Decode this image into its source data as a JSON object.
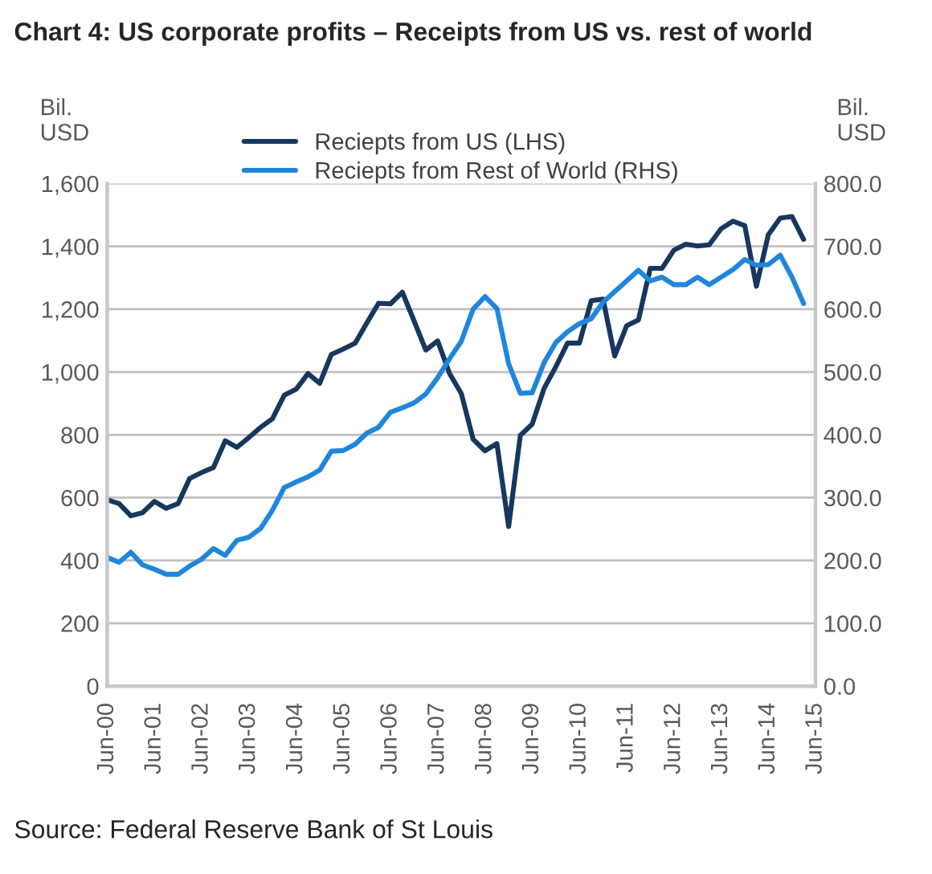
{
  "chart_data": {
    "type": "line",
    "title": "Chart 4: US corporate profits – Receipts from US vs. rest of world",
    "ylabel": "Bil.\nUSD",
    "y2label": "Bil.\nUSD",
    "annotations": [
      "Source: Federal Reserve Bank of St Louis"
    ],
    "x": [
      "2000-06",
      "2000-09",
      "2000-12",
      "2001-03",
      "2001-06",
      "2001-09",
      "2001-12",
      "2002-03",
      "2002-06",
      "2002-09",
      "2002-12",
      "2003-03",
      "2003-06",
      "2003-09",
      "2003-12",
      "2004-03",
      "2004-06",
      "2004-09",
      "2004-12",
      "2005-03",
      "2005-06",
      "2005-09",
      "2005-12",
      "2006-03",
      "2006-06",
      "2006-09",
      "2006-12",
      "2007-03",
      "2007-06",
      "2007-09",
      "2007-12",
      "2008-03",
      "2008-06",
      "2008-09",
      "2008-12",
      "2009-03",
      "2009-06",
      "2009-09",
      "2009-12",
      "2010-03",
      "2010-06",
      "2010-09",
      "2010-12",
      "2011-03",
      "2011-06",
      "2011-09",
      "2011-12",
      "2012-03",
      "2012-06",
      "2012-09",
      "2012-12",
      "2013-03",
      "2013-06",
      "2013-09",
      "2013-12",
      "2014-03",
      "2014-06",
      "2014-09",
      "2014-12",
      "2015-03"
    ],
    "series": [
      {
        "name": "Reciepts from US (LHS)",
        "color": "#17375e",
        "values": [
          593,
          581,
          542,
          552,
          588,
          566,
          581,
          661,
          680,
          696,
          781,
          760,
          791,
          824,
          851,
          926,
          945,
          995,
          964,
          1056,
          1073,
          1092,
          1157,
          1219,
          1217,
          1254,
          1162,
          1070,
          1099,
          995,
          931,
          786,
          749,
          772,
          508,
          798,
          834,
          948,
          1017,
          1092,
          1092,
          1227,
          1232,
          1051,
          1147,
          1166,
          1330,
          1330,
          1388,
          1407,
          1401,
          1405,
          1456,
          1480,
          1466,
          1273,
          1437,
          1490,
          1495,
          1422
        ]
      },
      {
        "name": "Reciepts from Rest of World (RHS)",
        "color": "#1f86dc",
        "axis": "y2",
        "values": [
          205,
          197,
          213,
          193,
          186,
          178,
          178,
          191,
          202,
          219,
          208,
          232,
          237,
          251,
          280,
          316,
          325,
          333,
          344,
          374,
          375,
          385,
          403,
          412,
          436,
          443,
          451,
          465,
          491,
          521,
          549,
          600,
          620,
          601,
          513,
          466,
          467,
          515,
          547,
          564,
          577,
          585,
          611,
          628,
          645,
          662,
          645,
          651,
          639,
          639,
          651,
          639,
          651,
          663,
          679,
          670,
          671,
          686,
          651,
          609
        ]
      }
    ],
    "xlim": [
      "2000-06",
      "2015-06"
    ],
    "xticks": [
      {
        "value": "2000-06",
        "label": "Jun-00"
      },
      {
        "value": "2001-06",
        "label": "Jun-01"
      },
      {
        "value": "2002-06",
        "label": "Jun-02"
      },
      {
        "value": "2003-06",
        "label": "Jun-03"
      },
      {
        "value": "2004-06",
        "label": "Jun-04"
      },
      {
        "value": "2005-06",
        "label": "Jun-05"
      },
      {
        "value": "2006-06",
        "label": "Jun-06"
      },
      {
        "value": "2007-06",
        "label": "Jun-07"
      },
      {
        "value": "2008-06",
        "label": "Jun-08"
      },
      {
        "value": "2009-06",
        "label": "Jun-09"
      },
      {
        "value": "2010-06",
        "label": "Jun-10"
      },
      {
        "value": "2011-06",
        "label": "Jun-11"
      },
      {
        "value": "2012-06",
        "label": "Jun-12"
      },
      {
        "value": "2013-06",
        "label": "Jun-13"
      },
      {
        "value": "2014-06",
        "label": "Jun-14"
      },
      {
        "value": "2015-06",
        "label": "Jun-15"
      }
    ],
    "ylim": [
      0,
      1600
    ],
    "yticks": [
      0,
      200,
      400,
      600,
      800,
      {
        "value": 1000,
        "label": "1,000"
      },
      {
        "value": 1200,
        "label": "1,200"
      },
      {
        "value": 1400,
        "label": "1,400"
      },
      {
        "value": 1600,
        "label": "1,600"
      }
    ],
    "y2lim": [
      0,
      800
    ],
    "y2ticks": [
      {
        "value": 0,
        "label": "0.0"
      },
      {
        "value": 100,
        "label": "100.0"
      },
      {
        "value": 200,
        "label": "200.0"
      },
      {
        "value": 300,
        "label": "300.0"
      },
      {
        "value": 400,
        "label": "400.0"
      },
      {
        "value": 500,
        "label": "500.0"
      },
      {
        "value": 600,
        "label": "600.0"
      },
      {
        "value": 700,
        "label": "700.0"
      },
      {
        "value": 800,
        "label": "800.0"
      }
    ],
    "grid": "y",
    "legend": "top",
    "line_style": "solid"
  }
}
